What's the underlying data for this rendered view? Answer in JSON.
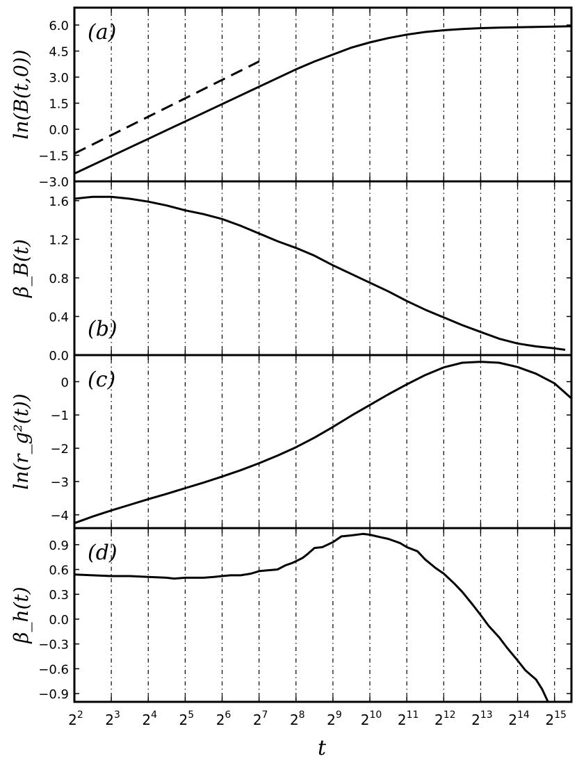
{
  "chart_data": [
    {
      "id": "a",
      "type": "line",
      "panel_label": "(a)",
      "ylabel": "ln(B(t,0))",
      "xlabel": "t",
      "x_scale": "log2",
      "x_ticks": [
        {
          "value": 4,
          "base": "2",
          "exp": "2"
        },
        {
          "value": 8,
          "base": "2",
          "exp": "3"
        },
        {
          "value": 16,
          "base": "2",
          "exp": "4"
        },
        {
          "value": 32,
          "base": "2",
          "exp": "5"
        },
        {
          "value": 64,
          "base": "2",
          "exp": "6"
        },
        {
          "value": 128,
          "base": "2",
          "exp": "7"
        },
        {
          "value": 256,
          "base": "2",
          "exp": "8"
        },
        {
          "value": 512,
          "base": "2",
          "exp": "9"
        },
        {
          "value": 1024,
          "base": "2",
          "exp": "10"
        },
        {
          "value": 2048,
          "base": "2",
          "exp": "11"
        },
        {
          "value": 4096,
          "base": "2",
          "exp": "12"
        },
        {
          "value": 8192,
          "base": "2",
          "exp": "13"
        },
        {
          "value": 16384,
          "base": "2",
          "exp": "14"
        },
        {
          "value": 32768,
          "base": "2",
          "exp": "15"
        }
      ],
      "xlim": [
        4,
        45000
      ],
      "ylim": [
        -3.0,
        7.0
      ],
      "yticks": [
        -3.0,
        -1.5,
        0.0,
        1.5,
        3.0,
        4.5,
        6.0
      ],
      "ytick_labels": [
        "−3.0",
        "−1.5",
        "0.0",
        "1.5",
        "3.0",
        "4.5",
        "6.0"
      ],
      "grid": "vertical dotted",
      "series": [
        {
          "style": "solid",
          "x": [
            4,
            5.66,
            8,
            11.3,
            16,
            22.6,
            32,
            45.3,
            64,
            90.5,
            128,
            181,
            256,
            362,
            512,
            724,
            1024,
            1448,
            2048,
            2896,
            4096,
            5793,
            8192,
            11585,
            16384,
            23170,
            32768,
            45000
          ],
          "y": [
            -2.55,
            -2.05,
            -1.55,
            -1.05,
            -0.55,
            -0.05,
            0.45,
            0.95,
            1.45,
            1.95,
            2.45,
            2.95,
            3.45,
            3.9,
            4.3,
            4.7,
            5.0,
            5.25,
            5.45,
            5.6,
            5.7,
            5.77,
            5.82,
            5.85,
            5.87,
            5.89,
            5.91,
            5.93
          ]
        },
        {
          "style": "dashed",
          "x": [
            4,
            128
          ],
          "y": [
            -1.4,
            3.9
          ]
        }
      ]
    },
    {
      "id": "b",
      "type": "line",
      "panel_label": "(b)",
      "ylabel": "β_B(t)",
      "x_scale": "log2",
      "xlim": [
        4,
        45000
      ],
      "ylim": [
        0.0,
        1.8
      ],
      "yticks": [
        0.0,
        0.4,
        0.8,
        1.2,
        1.6
      ],
      "ytick_labels": [
        "0.0",
        "0.4",
        "0.8",
        "1.2",
        "1.6"
      ],
      "grid": "vertical dotted",
      "series": [
        {
          "style": "solid",
          "x": [
            4,
            5.66,
            8,
            11.3,
            16,
            22.6,
            32,
            45.3,
            64,
            90.5,
            128,
            181,
            256,
            362,
            512,
            724,
            1024,
            1448,
            2048,
            2896,
            4096,
            5793,
            8192,
            11585,
            16384,
            23170,
            32768,
            40000
          ],
          "y": [
            1.62,
            1.64,
            1.64,
            1.62,
            1.59,
            1.55,
            1.5,
            1.46,
            1.41,
            1.34,
            1.26,
            1.18,
            1.11,
            1.03,
            0.93,
            0.84,
            0.75,
            0.66,
            0.56,
            0.47,
            0.39,
            0.31,
            0.24,
            0.17,
            0.12,
            0.09,
            0.07,
            0.055
          ]
        }
      ]
    },
    {
      "id": "c",
      "type": "line",
      "panel_label": "(c)",
      "ylabel": "ln(r_g²(t))",
      "x_scale": "log2",
      "xlim": [
        4,
        45000
      ],
      "ylim": [
        -4.4,
        0.8
      ],
      "yticks": [
        -4,
        -3,
        -2,
        -1,
        0
      ],
      "ytick_labels": [
        "−4",
        "−3",
        "−2",
        "−1",
        "0"
      ],
      "grid": "vertical dotted",
      "series": [
        {
          "style": "solid",
          "x": [
            4,
            5.66,
            8,
            11.3,
            16,
            22.6,
            32,
            45.3,
            64,
            90.5,
            128,
            181,
            256,
            362,
            512,
            724,
            1024,
            1448,
            2048,
            2896,
            4096,
            5793,
            8192,
            11585,
            16384,
            23170,
            32768,
            45000
          ],
          "y": [
            -4.25,
            -4.05,
            -3.87,
            -3.7,
            -3.53,
            -3.37,
            -3.2,
            -3.03,
            -2.85,
            -2.66,
            -2.45,
            -2.22,
            -1.97,
            -1.68,
            -1.36,
            -1.02,
            -0.7,
            -0.38,
            -0.08,
            0.2,
            0.43,
            0.57,
            0.6,
            0.57,
            0.44,
            0.24,
            -0.05,
            -0.5
          ]
        }
      ]
    },
    {
      "id": "d",
      "type": "line",
      "panel_label": "(d)",
      "ylabel": "β_h(t)",
      "x_scale": "log2",
      "xlim": [
        4,
        45000
      ],
      "ylim": [
        -1.0,
        1.1
      ],
      "yticks": [
        -0.9,
        -0.6,
        -0.3,
        0.0,
        0.3,
        0.6,
        0.9
      ],
      "ytick_labels": [
        "−0.9",
        "−0.6",
        "−0.3",
        "0.0",
        "0.3",
        "0.6",
        "0.9"
      ],
      "grid": "vertical dotted",
      "series": [
        {
          "style": "solid",
          "x": [
            4,
            5.66,
            8,
            11.3,
            16,
            22.6,
            26,
            32,
            45.3,
            55,
            64,
            75,
            82,
            90.5,
            110,
            128,
            150,
            181,
            210,
            240,
            256,
            290,
            320,
            362,
            420,
            512,
            600,
            700,
            800,
            900,
            1024,
            1250,
            1448,
            1800,
            2048,
            2500,
            2896,
            3500,
            4096,
            5000,
            5793,
            7000,
            8192,
            9500,
            11585,
            13500,
            16384,
            19000,
            23170,
            26000,
            29000
          ],
          "y": [
            0.54,
            0.53,
            0.52,
            0.52,
            0.51,
            0.5,
            0.49,
            0.5,
            0.5,
            0.51,
            0.52,
            0.53,
            0.53,
            0.53,
            0.55,
            0.58,
            0.59,
            0.6,
            0.65,
            0.68,
            0.7,
            0.74,
            0.79,
            0.86,
            0.87,
            0.93,
            1.0,
            1.01,
            1.02,
            1.03,
            1.02,
            0.99,
            0.97,
            0.92,
            0.87,
            0.82,
            0.72,
            0.62,
            0.55,
            0.43,
            0.33,
            0.18,
            0.05,
            -0.08,
            -0.22,
            -0.35,
            -0.5,
            -0.62,
            -0.73,
            -0.85,
            -1.0
          ]
        }
      ]
    }
  ]
}
